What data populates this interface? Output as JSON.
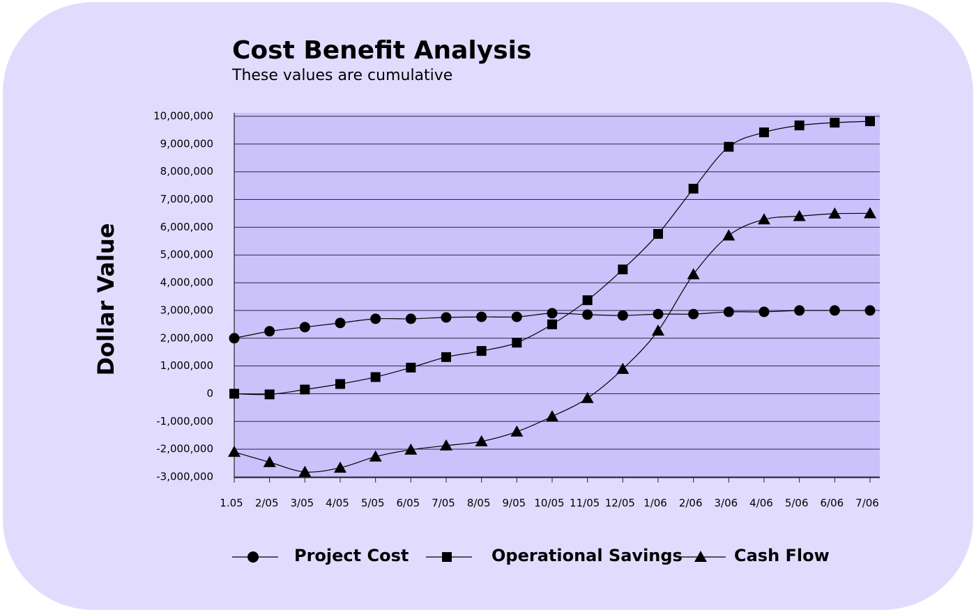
{
  "chart_data": {
    "type": "line",
    "title": "Cost Benefit Analysis",
    "subtitle": "These values are cumulative",
    "y_label": "Dollar Value",
    "categories": [
      "1.05",
      "2/05",
      "3/05",
      "4/05",
      "5/05",
      "6/05",
      "7/05",
      "8/05",
      "9/05",
      "10/05",
      "11/05",
      "12/05",
      "1/06",
      "2/06",
      "3/06",
      "4/06",
      "5/06",
      "6/06",
      "7/06"
    ],
    "ylim": [
      -3000000,
      10000000
    ],
    "yticks": [
      {
        "value": -3000000,
        "label": "-3,000,000"
      },
      {
        "value": -2000000,
        "label": "-2,000,000"
      },
      {
        "value": -1000000,
        "label": "-1,000,000"
      },
      0,
      {
        "value": 1000000,
        "label": "1,000,000"
      },
      {
        "value": 2000000,
        "label": "2,000,000"
      },
      {
        "value": 3000000,
        "label": "3,000,000"
      },
      {
        "value": 4000000,
        "label": "4,000,000"
      },
      {
        "value": 5000000,
        "label": "5,000,000"
      },
      {
        "value": 6000000,
        "label": "6,000,000"
      },
      {
        "value": 7000000,
        "label": "7,000,000"
      },
      {
        "value": 8000000,
        "label": "8,000,000"
      },
      {
        "value": 9000000,
        "label": "9,000,000"
      },
      {
        "value": 10000000,
        "label": "10,000,000"
      }
    ],
    "grid": true,
    "legend": "bottom",
    "series": [
      {
        "name": "Project Cost",
        "color": "#000000",
        "marker": "circle",
        "values": [
          2000000,
          2250000,
          2400000,
          2550000,
          2700000,
          2700000,
          2750000,
          2770000,
          2770000,
          2900000,
          2850000,
          2820000,
          2870000,
          2870000,
          2950000,
          2950000,
          3000000,
          3000000,
          3000000
        ]
      },
      {
        "name": "Operational Savings",
        "color": "#000000",
        "marker": "square",
        "values": [
          0,
          -25000,
          150000,
          350000,
          600000,
          940000,
          1320000,
          1540000,
          1840000,
          2500000,
          3370000,
          4480000,
          5760000,
          7390000,
          8900000,
          9420000,
          9670000,
          9770000,
          9820000
        ]
      },
      {
        "name": "Cash Flow",
        "color": "#000000",
        "marker": "triangle",
        "values": [
          -2100000,
          -2470000,
          -2820000,
          -2670000,
          -2270000,
          -2020000,
          -1870000,
          -1720000,
          -1370000,
          -820000,
          -160000,
          890000,
          2270000,
          4300000,
          5700000,
          6280000,
          6400000,
          6490000,
          6500000
        ]
      }
    ]
  }
}
